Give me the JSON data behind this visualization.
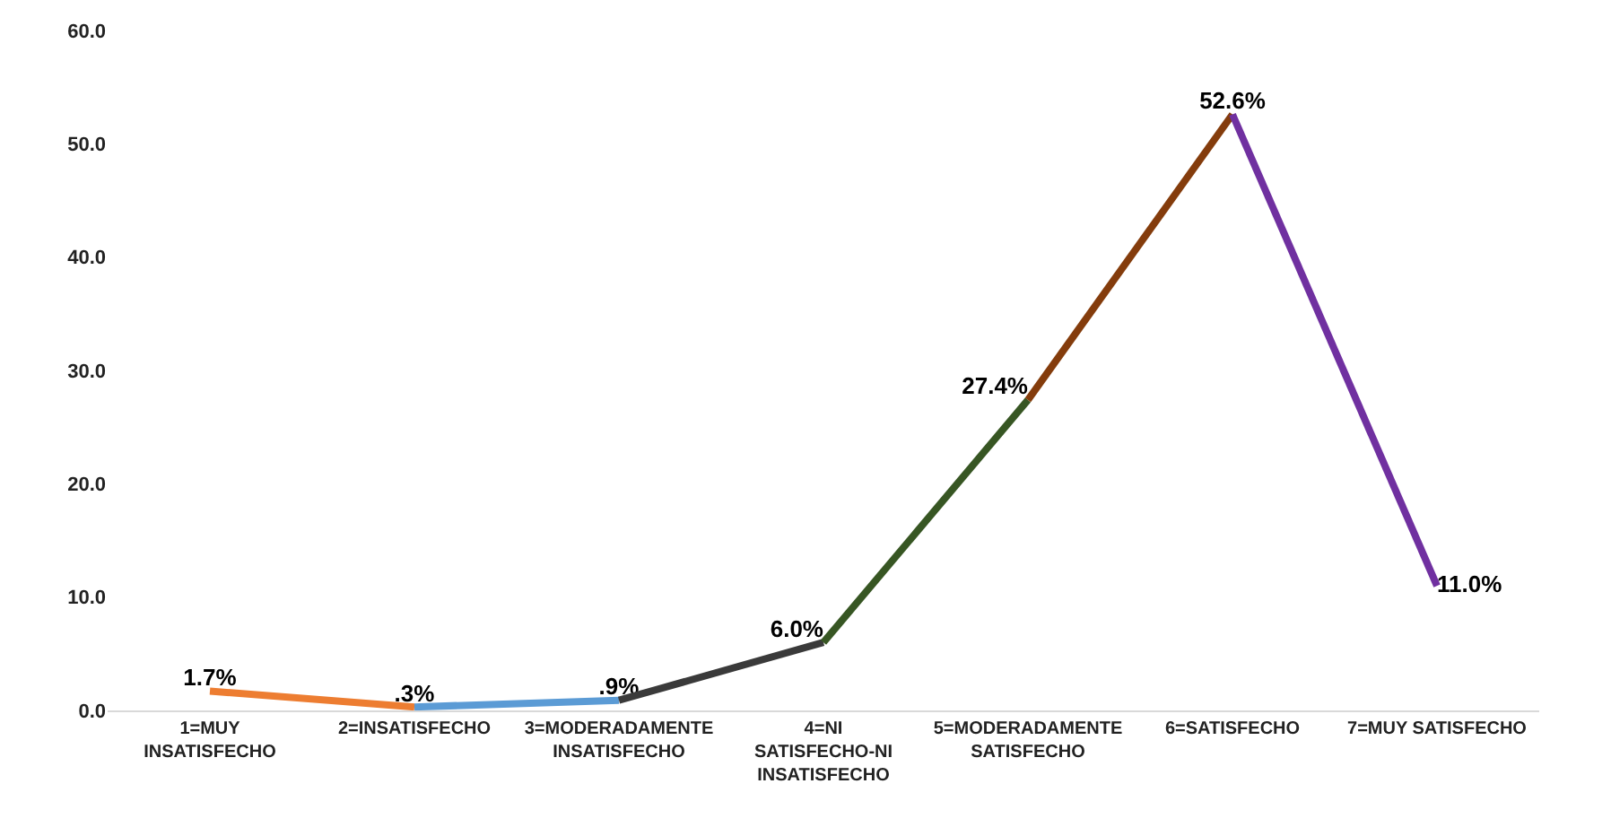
{
  "chart_data": {
    "type": "line",
    "categories": [
      "1=MUY INSATISFECHO",
      "2=INSATISFECHO",
      "3=MODERADAMENTE INSATISFECHO",
      "4=NI SATISFECHO-NI INSATISFECHO",
      "5=MODERADAMENTE SATISFECHO",
      "6=SATISFECHO",
      "7=MUY SATISFECHO"
    ],
    "series": [
      {
        "color": "#ed7d31",
        "values": [
          1.7,
          0.3,
          null,
          null,
          null,
          null,
          null
        ],
        "value_labels": [
          "1.7%",
          ".3%",
          null,
          null,
          null,
          null,
          null
        ]
      },
      {
        "color": "#5b9bd5",
        "values": [
          null,
          0.3,
          0.9,
          null,
          null,
          null,
          null
        ],
        "value_labels": [
          null,
          null,
          ".9%",
          null,
          null,
          null,
          null
        ]
      },
      {
        "color": "#3a3a3a",
        "values": [
          null,
          null,
          0.9,
          6.0,
          null,
          null,
          null
        ],
        "value_labels": [
          null,
          null,
          null,
          "6.0%",
          null,
          null,
          null
        ]
      },
      {
        "color": "#375623",
        "values": [
          null,
          null,
          null,
          6.0,
          27.4,
          null,
          null
        ],
        "value_labels": [
          null,
          null,
          null,
          null,
          "27.4%",
          null,
          null
        ]
      },
      {
        "color": "#843c0c",
        "values": [
          null,
          null,
          null,
          null,
          27.4,
          52.6,
          null
        ],
        "value_labels": [
          null,
          null,
          null,
          null,
          null,
          "52.6%",
          null
        ]
      },
      {
        "color": "#7030a0",
        "values": [
          null,
          null,
          null,
          null,
          null,
          52.6,
          11.0
        ],
        "value_labels": [
          null,
          null,
          null,
          null,
          null,
          null,
          "11.0%"
        ]
      }
    ],
    "ylim": [
      0,
      60
    ],
    "yticks": [
      {
        "value": 0,
        "label": "0.0"
      },
      {
        "value": 10,
        "label": "10.0"
      },
      {
        "value": 20,
        "label": "20.0"
      },
      {
        "value": 30,
        "label": "30.0"
      },
      {
        "value": 40,
        "label": "40.0"
      },
      {
        "value": 50,
        "label": "50.0"
      },
      {
        "value": 60,
        "label": "60.0"
      }
    ],
    "line_style": "solid"
  }
}
